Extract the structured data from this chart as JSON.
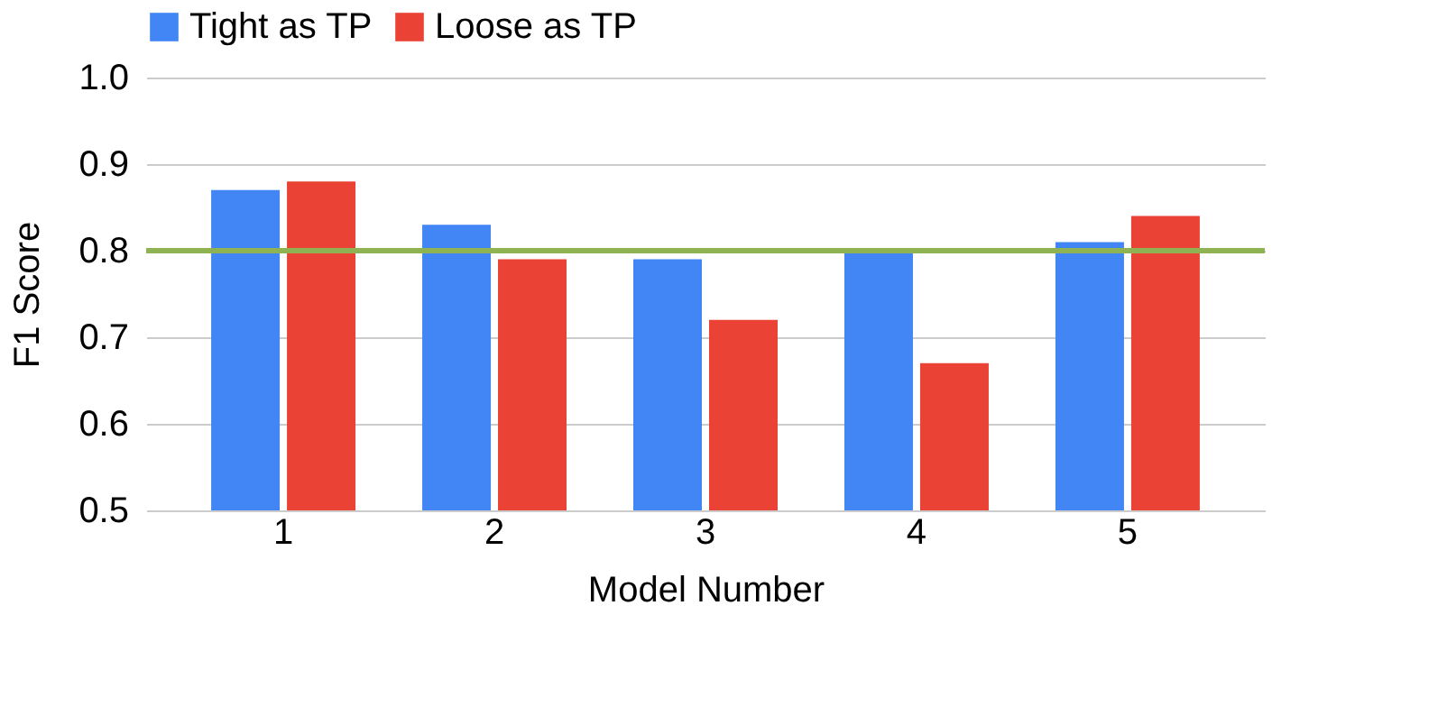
{
  "chart_data": {
    "type": "bar",
    "xlabel": "Model Number",
    "ylabel": "F1 Score",
    "categories": [
      "1",
      "2",
      "3",
      "4",
      "5"
    ],
    "series": [
      {
        "name": "Tight as TP",
        "color": "#4285f4",
        "values": [
          0.87,
          0.83,
          0.79,
          0.8,
          0.81
        ]
      },
      {
        "name": "Loose as TP",
        "color": "#ea4335",
        "values": [
          0.88,
          0.79,
          0.72,
          0.67,
          0.84
        ]
      }
    ],
    "ylim": [
      0.5,
      1.0
    ],
    "yticks": [
      0.5,
      0.6,
      0.7,
      0.8,
      0.9,
      {
        "value": 1,
        "label": "1.0"
      }
    ],
    "grid": "y",
    "legend": "top",
    "ref_lines": [
      {
        "axis": "y",
        "value": 0.8,
        "color": "#8fb352",
        "line_style": "solid"
      }
    ]
  }
}
